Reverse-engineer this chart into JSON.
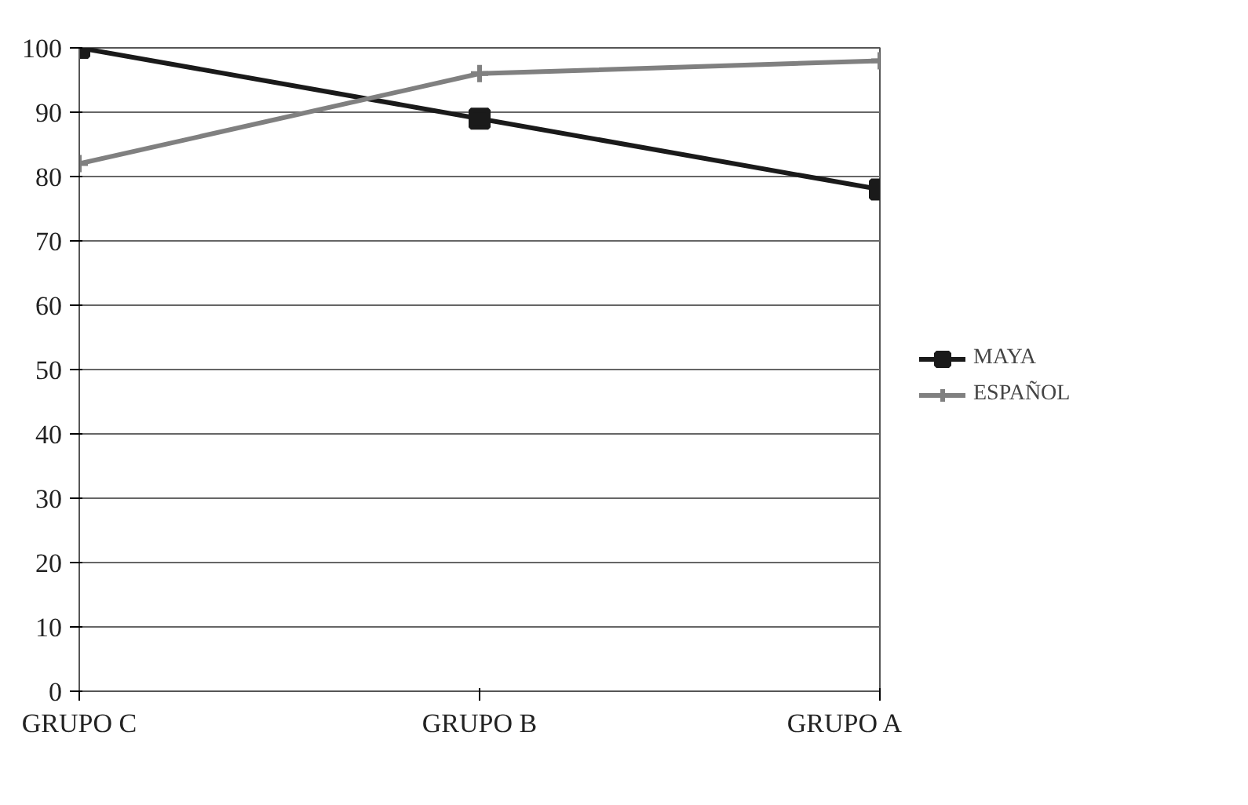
{
  "chart_data": {
    "type": "line",
    "categories": [
      "GRUPO C",
      "GRUPO B",
      "GRUPO A"
    ],
    "series": [
      {
        "name": "MAYA",
        "color": "#1a1a1a",
        "values": [
          100,
          89,
          78
        ],
        "marker": "square"
      },
      {
        "name": "ESPAÑOL",
        "color": "#808080",
        "values": [
          82,
          96,
          98
        ],
        "marker": "cross"
      }
    ],
    "ylim": [
      0,
      100
    ],
    "yticks": [
      0,
      10,
      20,
      30,
      40,
      50,
      60,
      70,
      80,
      90,
      100
    ],
    "grid": "y",
    "legend": "right",
    "line_style": "solid"
  }
}
